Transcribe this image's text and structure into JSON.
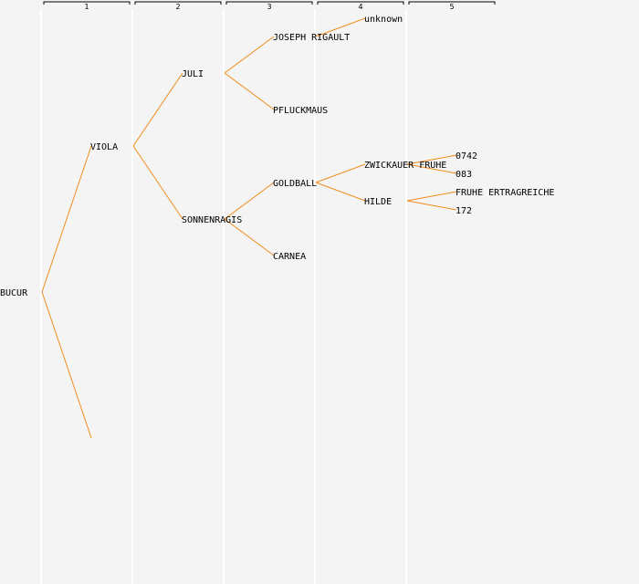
{
  "generations": [
    "1",
    "2",
    "3",
    "4",
    "5"
  ],
  "colors": {
    "line": "#f08c1e",
    "column_divider": "#ffffff",
    "background": "#f4f4f4"
  },
  "tree": {
    "name": "BUCUR",
    "children": [
      {
        "name": "VIOLA",
        "children": [
          {
            "name": "JULI",
            "children": [
              {
                "name": "JOSEPH RIGAULT",
                "children": [
                  {
                    "name": "unknown"
                  },
                  null
                ]
              },
              {
                "name": "PFLUCKMAUS"
              }
            ]
          },
          {
            "name": "SONNENRAGIS",
            "children": [
              {
                "name": "GOLDBALL",
                "children": [
                  {
                    "name": "ZWICKAUER FRUHE",
                    "children": [
                      {
                        "name": "0742"
                      },
                      {
                        "name": "083"
                      }
                    ]
                  },
                  {
                    "name": "HILDE",
                    "children": [
                      {
                        "name": "FRUHE ERTRAGREICHE"
                      },
                      {
                        "name": "172"
                      }
                    ]
                  }
                ]
              },
              {
                "name": "CARNEA"
              }
            ]
          }
        ]
      },
      {
        "name": ""
      }
    ]
  }
}
